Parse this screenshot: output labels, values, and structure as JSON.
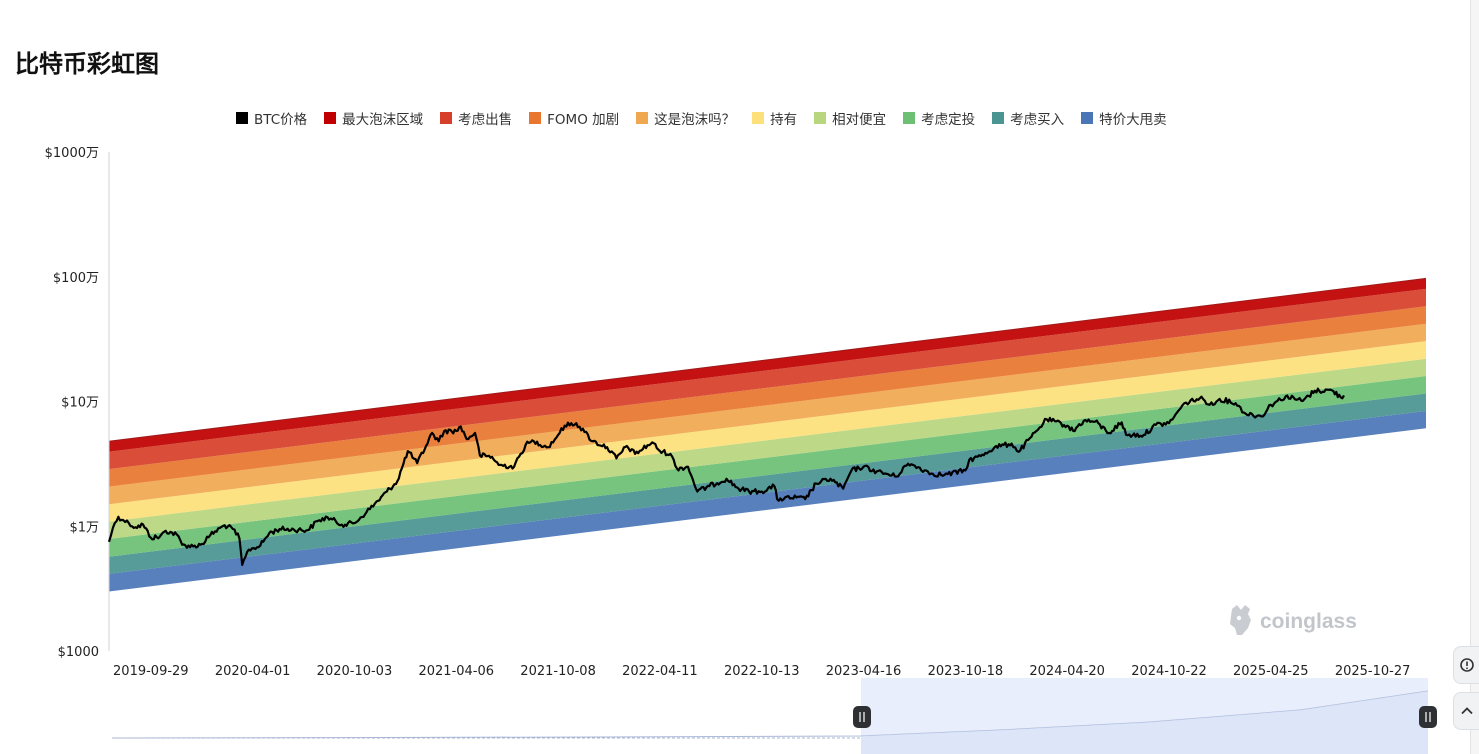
{
  "title": "比特币彩虹图",
  "legend": [
    {
      "label": "BTC价格",
      "color": "#000000"
    },
    {
      "label": "最大泡沫区域",
      "color": "#c00000"
    },
    {
      "label": "考虑出售",
      "color": "#d6402a"
    },
    {
      "label": "FOMO 加剧",
      "color": "#e8762e"
    },
    {
      "label": "这是泡沫吗？",
      "color": "#f0a850"
    },
    {
      "label": "持有",
      "color": "#fde07a"
    },
    {
      "label": "相对便宜",
      "color": "#b8d67e"
    },
    {
      "label": "考虑定投",
      "color": "#6cbf73"
    },
    {
      "label": "考虑买入",
      "color": "#4a9591"
    },
    {
      "label": "特价大甩卖",
      "color": "#4a76b8"
    }
  ],
  "watermark": "coinglass",
  "chart_data": {
    "type": "area",
    "y_scale": "log",
    "y_ticks": [
      {
        "value": 1000,
        "label": "$1000"
      },
      {
        "value": 10000,
        "label": "$1万"
      },
      {
        "value": 100000,
        "label": "$10万"
      },
      {
        "value": 1000000,
        "label": "$100万"
      },
      {
        "value": 10000000,
        "label": "$1000万"
      }
    ],
    "ylim": [
      1000,
      10000000
    ],
    "x_ticks": [
      "2019-09-29",
      "2020-04-01",
      "2020-10-03",
      "2021-04-06",
      "2021-10-08",
      "2022-04-11",
      "2022-10-13",
      "2023-04-16",
      "2023-10-18",
      "2024-04-20",
      "2024-10-22",
      "2025-04-25",
      "2025-10-27"
    ],
    "xlim": [
      "2019-07-15",
      "2026-02-01"
    ],
    "band_colors": [
      "#4a76b8",
      "#4a9591",
      "#6cbf73",
      "#b8d67e",
      "#fde07a",
      "#f0a850",
      "#e8762e",
      "#d6402a",
      "#c00000"
    ],
    "bands_start": {
      "date": "2019-07-15",
      "boundaries": [
        3000,
        4150,
        5700,
        7900,
        10900,
        15000,
        20800,
        28700,
        39600,
        48000
      ]
    },
    "bands_end": {
      "date": "2026-02-01",
      "boundaries": [
        61000,
        84000,
        116000,
        160000,
        220000,
        305000,
        420000,
        580000,
        800000,
        970000
      ]
    },
    "series": [
      {
        "name": "BTC价格",
        "color": "#000000",
        "points": [
          [
            "2019-07-15",
            7500
          ],
          [
            "2019-07-22",
            9700
          ],
          [
            "2019-08-01",
            11900
          ],
          [
            "2019-08-10",
            11200
          ],
          [
            "2019-08-20",
            10600
          ],
          [
            "2019-09-01",
            9800
          ],
          [
            "2019-09-15",
            10300
          ],
          [
            "2019-09-29",
            8100
          ],
          [
            "2019-10-15",
            8200
          ],
          [
            "2019-10-26",
            9200
          ],
          [
            "2019-11-15",
            8600
          ],
          [
            "2019-11-25",
            7100
          ],
          [
            "2019-12-15",
            6900
          ],
          [
            "2019-12-31",
            7200
          ],
          [
            "2020-01-15",
            8500
          ],
          [
            "2020-02-10",
            10200
          ],
          [
            "2020-02-25",
            9500
          ],
          [
            "2020-03-08",
            8000
          ],
          [
            "2020-03-13",
            4900
          ],
          [
            "2020-03-25",
            6500
          ],
          [
            "2020-04-15",
            7000
          ],
          [
            "2020-05-01",
            8800
          ],
          [
            "2020-05-20",
            9500
          ],
          [
            "2020-06-15",
            9400
          ],
          [
            "2020-07-10",
            9300
          ],
          [
            "2020-07-28",
            11000
          ],
          [
            "2020-08-15",
            11800
          ],
          [
            "2020-09-10",
            10300
          ],
          [
            "2020-10-03",
            10600
          ],
          [
            "2020-10-25",
            13000
          ],
          [
            "2020-11-15",
            16000
          ],
          [
            "2020-12-01",
            19000
          ],
          [
            "2020-12-20",
            23000
          ],
          [
            "2021-01-08",
            40000
          ],
          [
            "2021-01-25",
            32000
          ],
          [
            "2021-02-10",
            44000
          ],
          [
            "2021-02-21",
            56000
          ],
          [
            "2021-03-05",
            48000
          ],
          [
            "2021-03-15",
            58000
          ],
          [
            "2021-04-06",
            58000
          ],
          [
            "2021-04-14",
            63000
          ],
          [
            "2021-04-25",
            50000
          ],
          [
            "2021-05-10",
            56000
          ],
          [
            "2021-05-19",
            37000
          ],
          [
            "2021-06-10",
            36000
          ],
          [
            "2021-06-22",
            31000
          ],
          [
            "2021-07-20",
            30000
          ],
          [
            "2021-08-10",
            45000
          ],
          [
            "2021-08-25",
            48000
          ],
          [
            "2021-09-20",
            43000
          ],
          [
            "2021-10-08",
            54000
          ],
          [
            "2021-10-20",
            64000
          ],
          [
            "2021-11-10",
            67000
          ],
          [
            "2021-11-25",
            57000
          ],
          [
            "2021-12-10",
            48000
          ],
          [
            "2022-01-05",
            43000
          ],
          [
            "2022-01-22",
            35000
          ],
          [
            "2022-02-10",
            44000
          ],
          [
            "2022-02-25",
            38000
          ],
          [
            "2022-03-28",
            47000
          ],
          [
            "2022-04-11",
            40000
          ],
          [
            "2022-04-30",
            38000
          ],
          [
            "2022-05-12",
            29000
          ],
          [
            "2022-06-01",
            30000
          ],
          [
            "2022-06-18",
            19000
          ],
          [
            "2022-07-10",
            21000
          ],
          [
            "2022-08-10",
            24000
          ],
          [
            "2022-09-01",
            20000
          ],
          [
            "2022-09-20",
            19000
          ],
          [
            "2022-10-13",
            19000
          ],
          [
            "2022-11-05",
            21000
          ],
          [
            "2022-11-10",
            16500
          ],
          [
            "2022-12-15",
            17000
          ],
          [
            "2022-12-31",
            16500
          ],
          [
            "2023-01-20",
            22000
          ],
          [
            "2023-02-15",
            24000
          ],
          [
            "2023-03-10",
            20000
          ],
          [
            "2023-03-25",
            28000
          ],
          [
            "2023-04-16",
            30000
          ],
          [
            "2023-05-10",
            27500
          ],
          [
            "2023-06-15",
            25000
          ],
          [
            "2023-06-30",
            30500
          ],
          [
            "2023-07-15",
            31000
          ],
          [
            "2023-08-17",
            26500
          ],
          [
            "2023-09-10",
            25800
          ],
          [
            "2023-10-18",
            28000
          ],
          [
            "2023-10-25",
            34000
          ],
          [
            "2023-11-15",
            36500
          ],
          [
            "2023-12-10",
            43000
          ],
          [
            "2024-01-10",
            46000
          ],
          [
            "2024-01-23",
            39500
          ],
          [
            "2024-02-15",
            52000
          ],
          [
            "2024-03-01",
            62000
          ],
          [
            "2024-03-14",
            72000
          ],
          [
            "2024-04-20",
            64000
          ],
          [
            "2024-05-01",
            58000
          ],
          [
            "2024-05-20",
            70000
          ],
          [
            "2024-06-10",
            69000
          ],
          [
            "2024-07-05",
            56000
          ],
          [
            "2024-07-28",
            68000
          ],
          [
            "2024-08-05",
            54000
          ],
          [
            "2024-09-06",
            54000
          ],
          [
            "2024-09-28",
            65000
          ],
          [
            "2024-10-22",
            67000
          ],
          [
            "2024-11-12",
            88000
          ],
          [
            "2024-11-22",
            98000
          ],
          [
            "2024-12-17",
            106000
          ],
          [
            "2025-01-10",
            94000
          ],
          [
            "2025-01-22",
            105000
          ],
          [
            "2025-02-20",
            97000
          ],
          [
            "2025-03-10",
            80000
          ],
          [
            "2025-04-08",
            76000
          ],
          [
            "2025-04-25",
            94000
          ],
          [
            "2025-05-22",
            110000
          ],
          [
            "2025-06-22",
            101000
          ],
          [
            "2025-07-14",
            122000
          ],
          [
            "2025-08-14",
            123000
          ],
          [
            "2025-08-30",
            108000
          ],
          [
            "2025-09-05",
            112000
          ]
        ]
      }
    ]
  }
}
